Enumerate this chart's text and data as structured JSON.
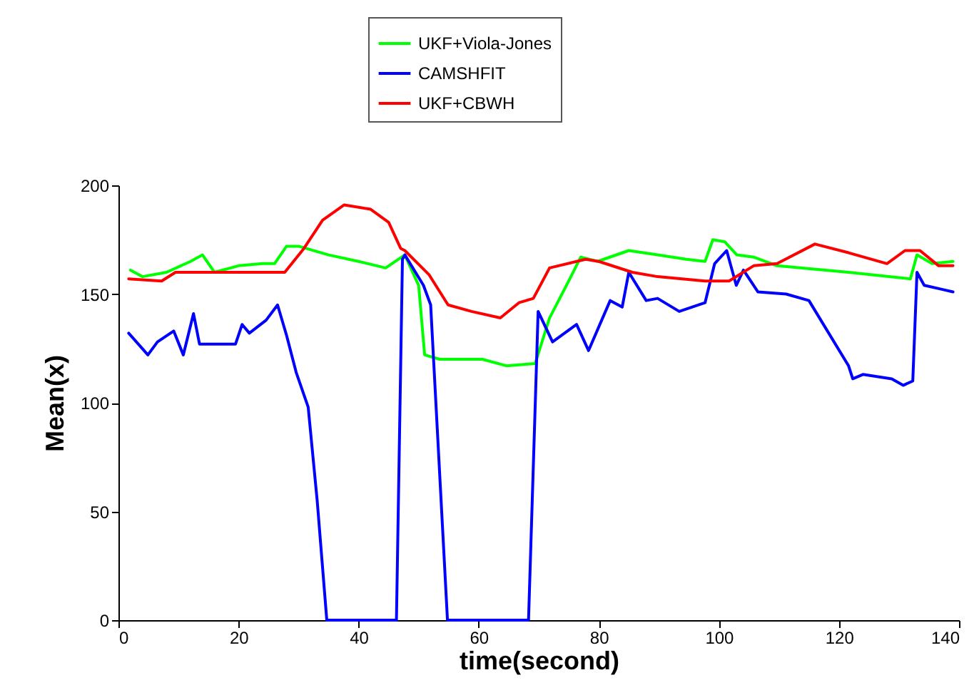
{
  "chart_data": {
    "type": "line",
    "xlabel": "time(second)",
    "ylabel": "Mean(x)",
    "xlim": [
      0,
      140
    ],
    "ylim": [
      0,
      200
    ],
    "xticks": [
      0,
      20,
      40,
      60,
      80,
      100,
      120,
      140
    ],
    "yticks": [
      0,
      50,
      100,
      150,
      200
    ],
    "grid": false,
    "legend": "top",
    "line_style": "solid",
    "series": [
      {
        "name": "UKF+Viola-Jones",
        "color": "#00ff00",
        "x": [
          2,
          4,
          8,
          12,
          14,
          16,
          20,
          24,
          26,
          28,
          30,
          35,
          40,
          44.5,
          47.7,
          50,
          51,
          53.5,
          60.6,
          64.6,
          69.4,
          71.8,
          75,
          77,
          79.8,
          85,
          89.8,
          94.6,
          97.7,
          99,
          101,
          103,
          105.8,
          109.7,
          121.6,
          131.9,
          133,
          135.5,
          139
        ],
        "values": [
          161,
          158,
          160,
          165,
          168,
          160,
          163,
          164,
          164,
          172,
          172,
          168,
          165,
          162,
          168,
          154,
          122,
          120,
          120,
          117,
          118,
          139,
          156,
          167,
          165,
          170,
          168,
          166,
          165,
          175,
          174,
          168,
          167,
          163,
          160,
          157,
          168,
          164,
          165
        ]
      },
      {
        "name": "CAMSHFIT",
        "color": "#0000ff",
        "x": [
          1.7,
          4.9,
          6.5,
          9.2,
          10.8,
          12.5,
          13.5,
          19.5,
          20.6,
          21.8,
          24.6,
          26.5,
          28,
          29.6,
          31.6,
          33.1,
          34.7,
          46.3,
          47.3,
          47.7,
          50.8,
          52,
          54.8,
          68.3,
          69.9,
          72.3,
          76.3,
          78.3,
          81.9,
          83.9,
          85,
          87.9,
          89.8,
          93.4,
          97.7,
          99.3,
          101.3,
          102.9,
          104.1,
          106.5,
          111.2,
          115,
          121.6,
          122.3,
          124,
          128.8,
          130.7,
          132.3,
          133,
          134.2,
          137.4,
          139
        ],
        "values": [
          132,
          122,
          128,
          133,
          122,
          141,
          127,
          127,
          136,
          132,
          138,
          145,
          131,
          114,
          98,
          55,
          0,
          0,
          166,
          168,
          154,
          145,
          0,
          0,
          142,
          128,
          136,
          124,
          147,
          144,
          160,
          147,
          148,
          142,
          146,
          164,
          170,
          154,
          161,
          151,
          150,
          147,
          117,
          111,
          113,
          111,
          108,
          110,
          160,
          154,
          152,
          151
        ]
      },
      {
        "name": "UKF+CBWH",
        "color": "#ff0000",
        "x": [
          1.7,
          7.2,
          9.5,
          15,
          27.7,
          30.9,
          34,
          37.6,
          42,
          45,
          47,
          47.7,
          51.7,
          54.9,
          58.8,
          63.6,
          66.7,
          69.1,
          71.8,
          77.8,
          80,
          85.6,
          89.8,
          97.7,
          101.7,
          105.8,
          109.7,
          116,
          121.6,
          128,
          131,
          133.5,
          136.6,
          139
        ],
        "values": [
          157,
          156,
          160,
          160,
          160,
          171,
          184,
          191,
          189,
          183,
          171,
          170,
          159,
          145,
          142,
          139,
          146,
          148,
          162,
          166,
          165,
          160,
          158,
          156,
          156,
          163,
          164,
          173,
          169,
          164,
          170,
          170,
          163,
          163
        ]
      }
    ]
  }
}
